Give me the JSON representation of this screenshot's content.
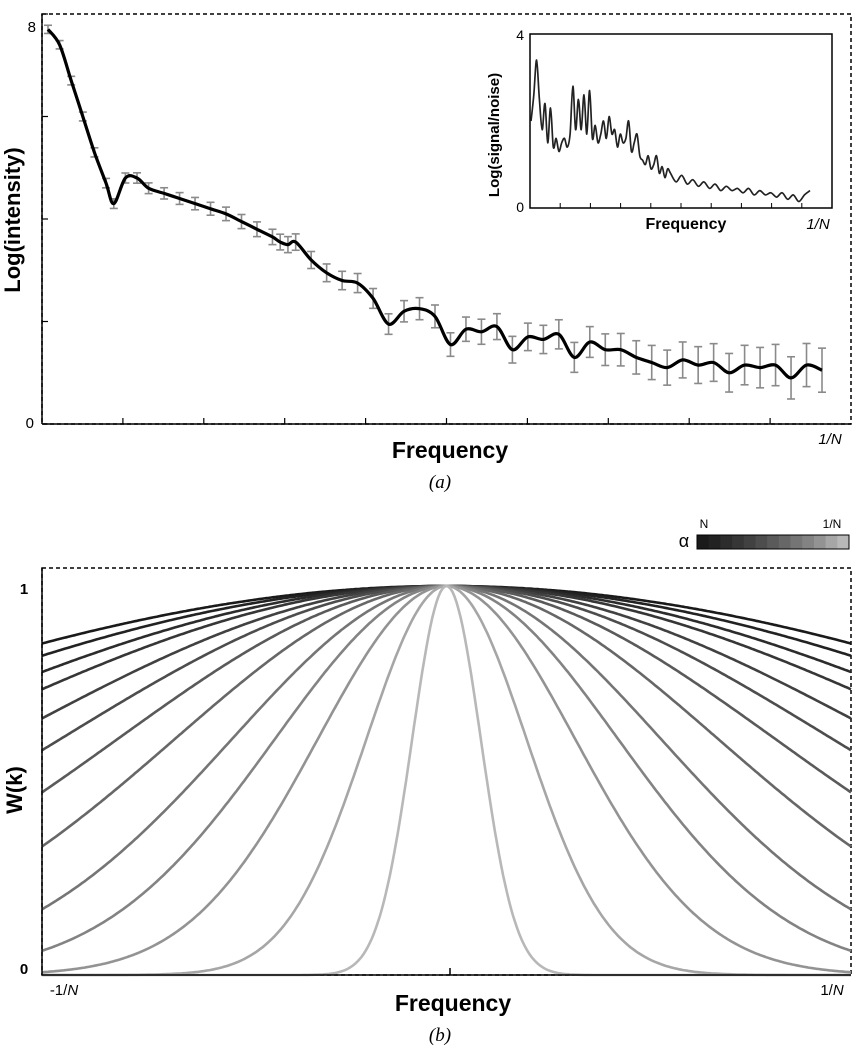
{
  "chart_data": [
    {
      "panel_label": "(a)",
      "type": "line",
      "xlabel": "Frequency",
      "ylabel": "Log(intensity)",
      "ylim": [
        0,
        8
      ],
      "y_tick_labels": [
        "0",
        "8"
      ],
      "x_end_label": "1/N",
      "xlim": [
        0,
        1
      ],
      "error_bars": true,
      "series": [
        {
          "x": [
            0.0,
            0.015,
            0.03,
            0.045,
            0.06,
            0.075,
            0.085,
            0.1,
            0.115,
            0.13,
            0.15,
            0.17,
            0.19,
            0.21,
            0.23,
            0.25,
            0.27,
            0.29,
            0.3,
            0.31,
            0.32,
            0.34,
            0.36,
            0.38,
            0.4,
            0.42,
            0.44,
            0.46,
            0.48,
            0.5,
            0.52,
            0.54,
            0.56,
            0.58,
            0.6,
            0.62,
            0.64,
            0.66,
            0.68,
            0.7,
            0.72,
            0.74,
            0.76,
            0.78,
            0.8,
            0.82,
            0.84,
            0.86,
            0.88,
            0.9,
            0.92,
            0.94,
            0.96,
            0.98,
            1.0
          ],
          "y": [
            7.7,
            7.4,
            6.7,
            6.0,
            5.3,
            4.7,
            4.3,
            4.8,
            4.8,
            4.6,
            4.5,
            4.4,
            4.3,
            4.2,
            4.1,
            3.95,
            3.8,
            3.65,
            3.55,
            3.5,
            3.55,
            3.2,
            2.95,
            2.8,
            2.75,
            2.45,
            1.95,
            2.2,
            2.25,
            2.1,
            1.55,
            1.85,
            1.8,
            1.9,
            1.45,
            1.7,
            1.65,
            1.75,
            1.3,
            1.6,
            1.45,
            1.45,
            1.3,
            1.2,
            1.1,
            1.25,
            1.15,
            1.2,
            1.0,
            1.15,
            1.1,
            1.15,
            0.9,
            1.15,
            1.05
          ]
        }
      ]
    },
    {
      "panel_label": "inset",
      "type": "line",
      "xlabel": "Frequency",
      "ylabel": "Log(signal/noise)",
      "ylim": [
        0,
        4
      ],
      "y_tick_labels": [
        "0",
        "4"
      ],
      "x_end_label": "1/N",
      "xlim": [
        0,
        1
      ],
      "series": [
        {
          "x": [
            0.0,
            0.01,
            0.02,
            0.03,
            0.04,
            0.05,
            0.06,
            0.07,
            0.08,
            0.09,
            0.1,
            0.11,
            0.12,
            0.13,
            0.14,
            0.15,
            0.16,
            0.17,
            0.18,
            0.19,
            0.2,
            0.21,
            0.22,
            0.23,
            0.24,
            0.25,
            0.26,
            0.27,
            0.28,
            0.29,
            0.3,
            0.31,
            0.32,
            0.33,
            0.34,
            0.35,
            0.36,
            0.37,
            0.38,
            0.39,
            0.4,
            0.41,
            0.42,
            0.43,
            0.44,
            0.45,
            0.46,
            0.47,
            0.48,
            0.49,
            0.5,
            0.52,
            0.54,
            0.56,
            0.58,
            0.6,
            0.62,
            0.64,
            0.66,
            0.68,
            0.7,
            0.72,
            0.74,
            0.76,
            0.78,
            0.8,
            0.82,
            0.84,
            0.86,
            0.88,
            0.9,
            0.92,
            0.94,
            0.96,
            0.98,
            1.0
          ],
          "y": [
            2.0,
            2.6,
            3.4,
            2.5,
            1.8,
            2.4,
            1.5,
            2.3,
            1.4,
            1.6,
            1.3,
            1.5,
            1.6,
            1.4,
            1.7,
            2.8,
            1.8,
            2.5,
            1.8,
            2.6,
            1.7,
            2.7,
            1.6,
            1.9,
            1.5,
            1.7,
            2.0,
            1.6,
            2.1,
            1.7,
            1.8,
            1.4,
            1.7,
            1.5,
            1.6,
            2.0,
            1.3,
            1.5,
            1.7,
            1.2,
            1.1,
            1.0,
            1.2,
            0.9,
            1.0,
            1.2,
            0.8,
            0.95,
            0.7,
            0.9,
            0.8,
            0.6,
            0.75,
            0.55,
            0.65,
            0.5,
            0.6,
            0.45,
            0.55,
            0.4,
            0.5,
            0.4,
            0.45,
            0.35,
            0.45,
            0.3,
            0.4,
            0.3,
            0.35,
            0.25,
            0.35,
            0.2,
            0.3,
            0.15,
            0.3,
            0.4
          ]
        }
      ]
    },
    {
      "panel_label": "(b)",
      "type": "line",
      "xlabel": "Frequency",
      "ylabel": "W(k)",
      "ylim": [
        0,
        1
      ],
      "y_tick_labels": [
        "0",
        "1"
      ],
      "x_tick_labels": [
        "-1/N",
        "1/N"
      ],
      "xlim": [
        -1,
        1
      ],
      "formula_note": "W(k) = exp(-(k/sigma)^2) for 13 values of sigma",
      "legend": {
        "symbol": "α",
        "left_label": "N",
        "right_label": "1/N",
        "placement": "top-right"
      },
      "series": [
        {
          "sigma": 2.5,
          "color": "#1a1a1a"
        },
        {
          "sigma": 2.25,
          "color": "#222222"
        },
        {
          "sigma": 2.0,
          "color": "#2c2c2c"
        },
        {
          "sigma": 1.8,
          "color": "#363636"
        },
        {
          "sigma": 1.55,
          "color": "#414141"
        },
        {
          "sigma": 1.35,
          "color": "#4d4d4d"
        },
        {
          "sigma": 1.15,
          "color": "#5a5a5a"
        },
        {
          "sigma": 0.95,
          "color": "#676767"
        },
        {
          "sigma": 0.75,
          "color": "#757575"
        },
        {
          "sigma": 0.6,
          "color": "#838383"
        },
        {
          "sigma": 0.45,
          "color": "#939393"
        },
        {
          "sigma": 0.28,
          "color": "#a6a6a6"
        },
        {
          "sigma": 0.12,
          "color": "#b8b8b8"
        }
      ]
    }
  ],
  "caption_a": "(a)",
  "caption_b": "(b)"
}
